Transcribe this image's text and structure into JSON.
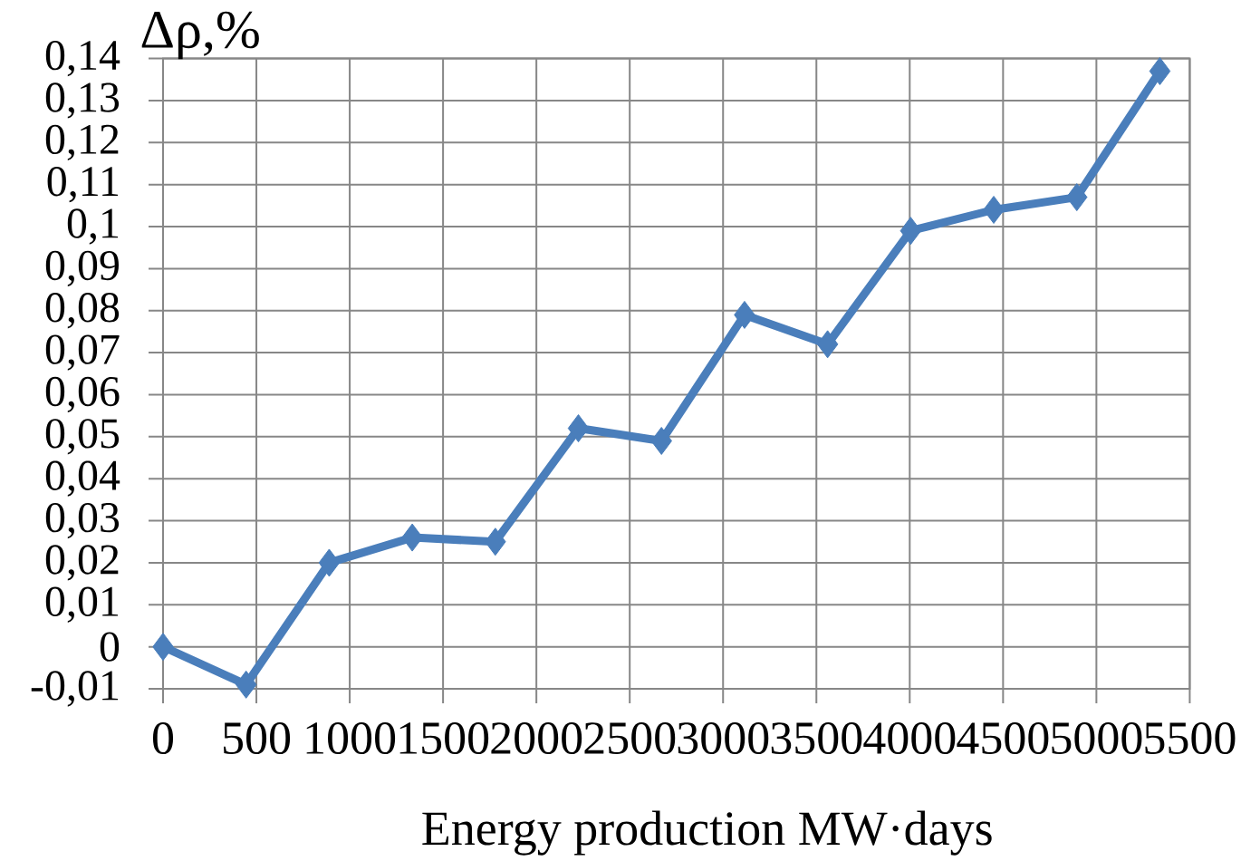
{
  "chart_data": {
    "type": "line",
    "ylabel": "Δρ,%",
    "xlabel": "Energy production MW·days",
    "x": [
      0,
      445,
      890,
      1335,
      1780,
      2225,
      2670,
      3115,
      3560,
      4005,
      4450,
      4895,
      5340
    ],
    "series": [
      {
        "color": "#4a7ebb",
        "values": [
          0,
          -0.009,
          0.02,
          0.026,
          0.025,
          0.052,
          0.049,
          0.079,
          0.072,
          0.099,
          0.104,
          0.107,
          0.137
        ]
      }
    ],
    "xlim": [
      0,
      5500
    ],
    "xticks": [
      0,
      500,
      1000,
      1500,
      2000,
      2500,
      3000,
      3500,
      4000,
      4500,
      5000,
      5500
    ],
    "ylim": [
      -0.01,
      0.14
    ],
    "yticks": [
      {
        "value": -0.01,
        "label": "-0,01"
      },
      0,
      {
        "value": 0.01,
        "label": "0,01"
      },
      {
        "value": 0.02,
        "label": "0,02"
      },
      {
        "value": 0.03,
        "label": "0,03"
      },
      {
        "value": 0.04,
        "label": "0,04"
      },
      {
        "value": 0.05,
        "label": "0,05"
      },
      {
        "value": 0.06,
        "label": "0,06"
      },
      {
        "value": 0.07,
        "label": "0,07"
      },
      {
        "value": 0.08,
        "label": "0,08"
      },
      {
        "value": 0.09,
        "label": "0,09"
      },
      {
        "value": 0.1,
        "label": "0,1"
      },
      {
        "value": 0.11,
        "label": "0,11"
      },
      {
        "value": 0.12,
        "label": "0,12"
      },
      {
        "value": 0.13,
        "label": "0,13"
      },
      {
        "value": 0.14,
        "label": "0,14"
      }
    ],
    "grid": true,
    "marker": "diamond",
    "line_style": "solid"
  }
}
